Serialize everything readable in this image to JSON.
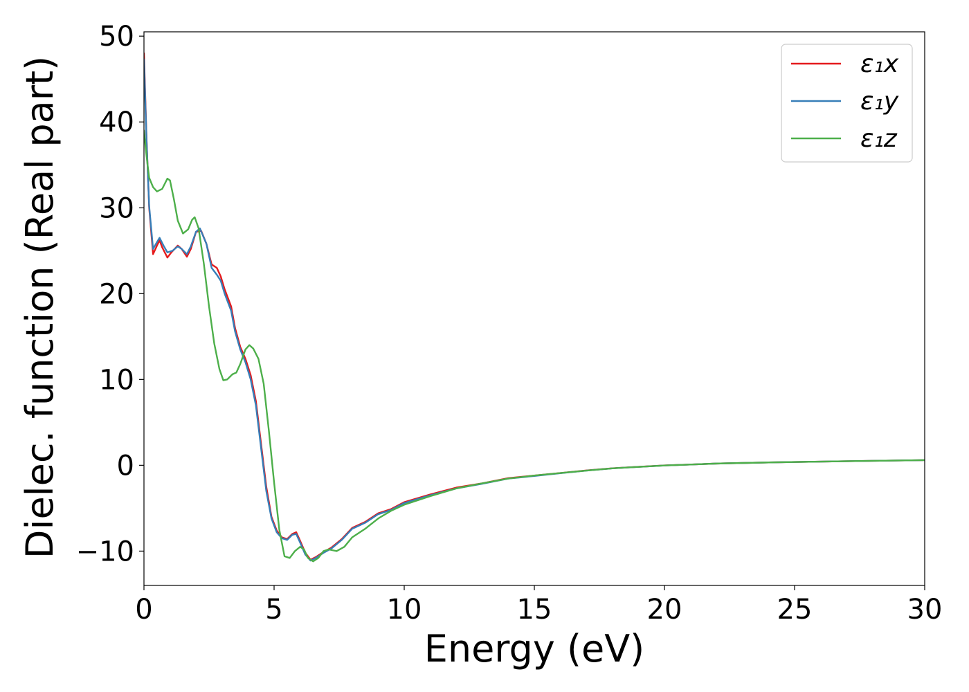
{
  "chart_data": {
    "type": "line",
    "xlabel": "Energy (eV)",
    "ylabel": "Dielec. function (Real part)",
    "xlim": [
      0,
      30
    ],
    "ylim": [
      -14,
      50.5
    ],
    "xticks": [
      0,
      5,
      10,
      15,
      20,
      25,
      30
    ],
    "yticks": [
      -10,
      0,
      10,
      20,
      30,
      40,
      50
    ],
    "xtick_labels": [
      "0",
      "5",
      "10",
      "15",
      "20",
      "25",
      "30"
    ],
    "ytick_labels": [
      "−10",
      "0",
      "10",
      "20",
      "30",
      "40",
      "50"
    ],
    "grid": false,
    "legend_position": "top-right",
    "series": [
      {
        "name": "ε₁x",
        "color": "#e41a1c",
        "points": [
          [
            0,
            48
          ],
          [
            0.1,
            38
          ],
          [
            0.2,
            30
          ],
          [
            0.35,
            24.6
          ],
          [
            0.5,
            25.6
          ],
          [
            0.6,
            26.2
          ],
          [
            0.7,
            25.4
          ],
          [
            0.9,
            24.2
          ],
          [
            1.05,
            24.8
          ],
          [
            1.3,
            25.6
          ],
          [
            1.45,
            25.2
          ],
          [
            1.65,
            24.3
          ],
          [
            1.8,
            25.2
          ],
          [
            2.0,
            27.2
          ],
          [
            2.2,
            27.3
          ],
          [
            2.4,
            25.8
          ],
          [
            2.6,
            23.4
          ],
          [
            2.8,
            23
          ],
          [
            2.95,
            22
          ],
          [
            3.1,
            20.5
          ],
          [
            3.35,
            18.5
          ],
          [
            3.5,
            16
          ],
          [
            3.7,
            13.8
          ],
          [
            3.9,
            12.4
          ],
          [
            4.1,
            10.5
          ],
          [
            4.3,
            7.5
          ],
          [
            4.5,
            2.5
          ],
          [
            4.7,
            -2.5
          ],
          [
            4.9,
            -6
          ],
          [
            5.1,
            -7.6
          ],
          [
            5.3,
            -8.4
          ],
          [
            5.5,
            -8.6
          ],
          [
            5.7,
            -8
          ],
          [
            5.85,
            -7.8
          ],
          [
            6.0,
            -8.8
          ],
          [
            6.2,
            -10.2
          ],
          [
            6.4,
            -11
          ],
          [
            6.6,
            -10.7
          ],
          [
            6.9,
            -10.1
          ],
          [
            7.2,
            -9.6
          ],
          [
            7.6,
            -8.6
          ],
          [
            8.0,
            -7.3
          ],
          [
            8.5,
            -6.6
          ],
          [
            9.0,
            -5.6
          ],
          [
            9.5,
            -5.1
          ],
          [
            10,
            -4.3
          ],
          [
            11,
            -3.4
          ],
          [
            12,
            -2.6
          ],
          [
            13,
            -2.1
          ],
          [
            14,
            -1.5
          ],
          [
            15,
            -1.2
          ],
          [
            16,
            -0.9
          ],
          [
            17,
            -0.6
          ],
          [
            18,
            -0.35
          ],
          [
            19,
            -0.18
          ],
          [
            20,
            -0.02
          ],
          [
            22,
            0.2
          ],
          [
            24,
            0.33
          ],
          [
            26,
            0.43
          ],
          [
            28,
            0.52
          ],
          [
            30,
            0.6
          ]
        ]
      },
      {
        "name": "ε₁y",
        "color": "#377eb8",
        "points": [
          [
            0,
            47.3
          ],
          [
            0.1,
            37.8
          ],
          [
            0.2,
            30.2
          ],
          [
            0.35,
            25.2
          ],
          [
            0.5,
            26
          ],
          [
            0.6,
            26.5
          ],
          [
            0.75,
            25.6
          ],
          [
            0.9,
            24.8
          ],
          [
            1.1,
            25
          ],
          [
            1.3,
            25.5
          ],
          [
            1.45,
            25.2
          ],
          [
            1.65,
            24.6
          ],
          [
            1.8,
            25.5
          ],
          [
            2.0,
            27.2
          ],
          [
            2.15,
            27.6
          ],
          [
            2.4,
            25.8
          ],
          [
            2.6,
            23
          ],
          [
            2.8,
            22.2
          ],
          [
            2.95,
            21.5
          ],
          [
            3.1,
            20
          ],
          [
            3.35,
            18
          ],
          [
            3.5,
            15.6
          ],
          [
            3.7,
            13.5
          ],
          [
            3.9,
            12
          ],
          [
            4.1,
            10
          ],
          [
            4.3,
            7
          ],
          [
            4.5,
            2
          ],
          [
            4.7,
            -3
          ],
          [
            4.9,
            -6.2
          ],
          [
            5.1,
            -7.8
          ],
          [
            5.3,
            -8.5
          ],
          [
            5.5,
            -8.7
          ],
          [
            5.7,
            -8.1
          ],
          [
            5.85,
            -8
          ],
          [
            6.0,
            -9
          ],
          [
            6.2,
            -10.4
          ],
          [
            6.4,
            -11.1
          ],
          [
            6.6,
            -10.8
          ],
          [
            6.9,
            -10.2
          ],
          [
            7.2,
            -9.7
          ],
          [
            7.6,
            -8.7
          ],
          [
            8.0,
            -7.4
          ],
          [
            8.5,
            -6.7
          ],
          [
            9.0,
            -5.7
          ],
          [
            9.5,
            -5.2
          ],
          [
            10,
            -4.4
          ],
          [
            11,
            -3.5
          ],
          [
            12,
            -2.7
          ],
          [
            13,
            -2.15
          ],
          [
            14,
            -1.55
          ],
          [
            15,
            -1.25
          ],
          [
            16,
            -0.92
          ],
          [
            17,
            -0.62
          ],
          [
            18,
            -0.36
          ],
          [
            19,
            -0.19
          ],
          [
            20,
            -0.03
          ],
          [
            22,
            0.2
          ],
          [
            24,
            0.33
          ],
          [
            26,
            0.43
          ],
          [
            28,
            0.52
          ],
          [
            30,
            0.6
          ]
        ]
      },
      {
        "name": "ε₁z",
        "color": "#4daf4a",
        "points": [
          [
            0,
            39
          ],
          [
            0.1,
            36
          ],
          [
            0.2,
            33.5
          ],
          [
            0.35,
            32.4
          ],
          [
            0.5,
            31.9
          ],
          [
            0.7,
            32.2
          ],
          [
            0.9,
            33.4
          ],
          [
            1.0,
            33.2
          ],
          [
            1.15,
            31
          ],
          [
            1.3,
            28.5
          ],
          [
            1.5,
            27
          ],
          [
            1.7,
            27.5
          ],
          [
            1.85,
            28.6
          ],
          [
            1.95,
            28.9
          ],
          [
            2.1,
            27.6
          ],
          [
            2.3,
            23.5
          ],
          [
            2.5,
            18.5
          ],
          [
            2.7,
            14.2
          ],
          [
            2.9,
            11.2
          ],
          [
            3.05,
            9.9
          ],
          [
            3.2,
            10
          ],
          [
            3.4,
            10.6
          ],
          [
            3.55,
            10.8
          ],
          [
            3.7,
            11.8
          ],
          [
            3.9,
            13.5
          ],
          [
            4.05,
            14
          ],
          [
            4.2,
            13.6
          ],
          [
            4.4,
            12.4
          ],
          [
            4.6,
            9.5
          ],
          [
            4.8,
            4
          ],
          [
            5.0,
            -2
          ],
          [
            5.2,
            -7.5
          ],
          [
            5.4,
            -10.6
          ],
          [
            5.6,
            -10.8
          ],
          [
            5.8,
            -10
          ],
          [
            6.0,
            -9.5
          ],
          [
            6.15,
            -9.8
          ],
          [
            6.3,
            -10.8
          ],
          [
            6.5,
            -11.2
          ],
          [
            6.7,
            -10.8
          ],
          [
            6.9,
            -10
          ],
          [
            7.1,
            -9.8
          ],
          [
            7.4,
            -10
          ],
          [
            7.7,
            -9.5
          ],
          [
            8.0,
            -8.4
          ],
          [
            8.5,
            -7.4
          ],
          [
            9.0,
            -6.2
          ],
          [
            9.5,
            -5.3
          ],
          [
            10,
            -4.6
          ],
          [
            11,
            -3.6
          ],
          [
            12,
            -2.7
          ],
          [
            13,
            -2.1
          ],
          [
            14,
            -1.55
          ],
          [
            15,
            -1.2
          ],
          [
            16,
            -0.9
          ],
          [
            17,
            -0.62
          ],
          [
            18,
            -0.36
          ],
          [
            19,
            -0.19
          ],
          [
            20,
            -0.03
          ],
          [
            22,
            0.2
          ],
          [
            24,
            0.33
          ],
          [
            26,
            0.43
          ],
          [
            28,
            0.52
          ],
          [
            30,
            0.6
          ]
        ]
      }
    ]
  }
}
